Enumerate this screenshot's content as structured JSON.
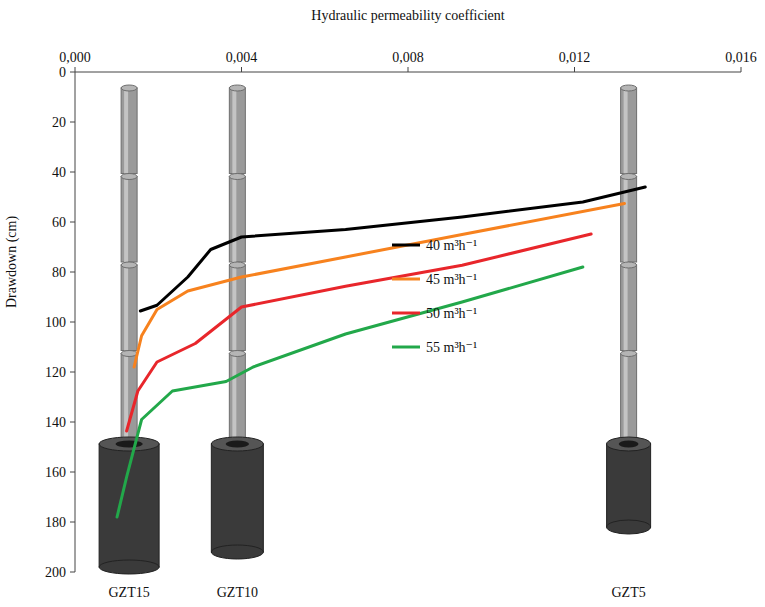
{
  "chart_data": {
    "type": "line",
    "x_label": "Hydraulic permeability coefficient",
    "y_label": "Drawdown  (cm)",
    "xlim": [
      0,
      0.016
    ],
    "xticks": [
      {
        "value": 0,
        "label": "0,000"
      },
      {
        "value": 0.004,
        "label": "0,004"
      },
      {
        "value": 0.008,
        "label": "0,008"
      },
      {
        "value": 0.012,
        "label": "0,012"
      },
      {
        "value": 0.016,
        "label": "0,016"
      }
    ],
    "ylim": [
      0,
      200
    ],
    "yticks": [
      0,
      20,
      40,
      60,
      80,
      100,
      120,
      140,
      160,
      180,
      200
    ],
    "grid": false,
    "legend": "right",
    "series": [
      {
        "name": "40 m³h⁻¹",
        "color": "#000000",
        "x": [
          0.00157,
          0.00197,
          0.00271,
          0.00326,
          0.004,
          0.0065,
          0.0093,
          0.0122,
          0.0137
        ],
        "values": [
          95.6,
          93.3,
          82,
          71,
          66,
          63,
          58,
          52,
          46
        ]
      },
      {
        "name": "45 m³h⁻¹",
        "color": "#f7821e",
        "x": [
          0.00142,
          0.0016,
          0.00197,
          0.00271,
          0.004,
          0.0065,
          0.0093,
          0.0132
        ],
        "values": [
          118,
          105.5,
          95,
          87.6,
          82,
          74,
          65,
          52.6
        ]
      },
      {
        "name": "50 m³h⁻¹",
        "color": "#e8262b",
        "x": [
          0.00124,
          0.00151,
          0.00197,
          0.00289,
          0.004,
          0.0065,
          0.0093,
          0.0124
        ],
        "values": [
          143.6,
          127.6,
          116,
          108.6,
          94,
          85.7,
          77.3,
          64.8
        ]
      },
      {
        "name": "55 m³h⁻¹",
        "color": "#22a84a",
        "x": [
          0.00101,
          0.00124,
          0.0016,
          0.00234,
          0.00363,
          0.00428,
          0.0065,
          0.0093,
          0.0122
        ],
        "values": [
          178,
          162,
          139,
          127.6,
          123.8,
          118,
          104.8,
          92,
          78
        ]
      }
    ],
    "annotations": [
      {
        "text": "GZT15",
        "x": 0.0013
      },
      {
        "text": "GZT10",
        "x": 0.0039
      },
      {
        "text": "GZT5",
        "x": 0.0133
      }
    ]
  }
}
